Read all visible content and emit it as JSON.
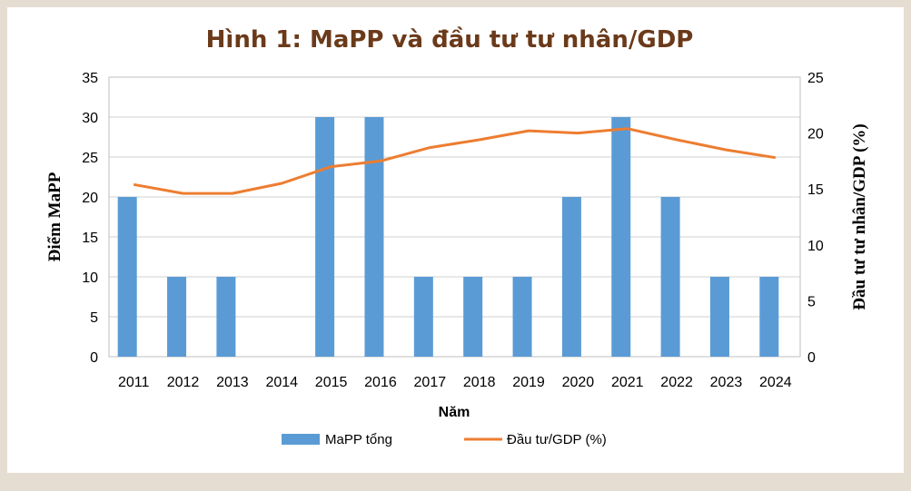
{
  "chart_data": {
    "type": "bar",
    "title": "Hình 1: MaPP và đầu tư tư nhân/GDP",
    "xlabel": "Năm",
    "ylabel": "Điểm MaPP",
    "y2label": "Đầu tư tư nhân/GDP (%)",
    "categories": [
      "2011",
      "2012",
      "2013",
      "2014",
      "2015",
      "2016",
      "2017",
      "2018",
      "2019",
      "2020",
      "2021",
      "2022",
      "2023",
      "2024"
    ],
    "ylim": [
      0,
      35
    ],
    "y_ticks": [
      "0",
      "5",
      "10",
      "15",
      "20",
      "25",
      "30",
      "35"
    ],
    "y2lim": [
      0,
      25
    ],
    "y2_ticks": [
      "0",
      "5",
      "10",
      "15",
      "20",
      "25"
    ],
    "grid": true,
    "legend_position": "bottom",
    "series": [
      {
        "name": "MaPP tổng",
        "type": "bar",
        "axis": "left",
        "color": "#5b9bd5",
        "values": [
          20,
          10,
          10,
          0,
          30,
          30,
          10,
          10,
          10,
          20,
          30,
          20,
          10,
          10
        ]
      },
      {
        "name": "Đầu tư/GDP (%)",
        "type": "line",
        "axis": "right",
        "color": "#ed7d31",
        "values": [
          15.4,
          14.6,
          14.6,
          15.5,
          17.0,
          17.5,
          18.7,
          19.4,
          20.2,
          20.0,
          20.4,
          19.4,
          18.5,
          17.8
        ]
      }
    ]
  }
}
